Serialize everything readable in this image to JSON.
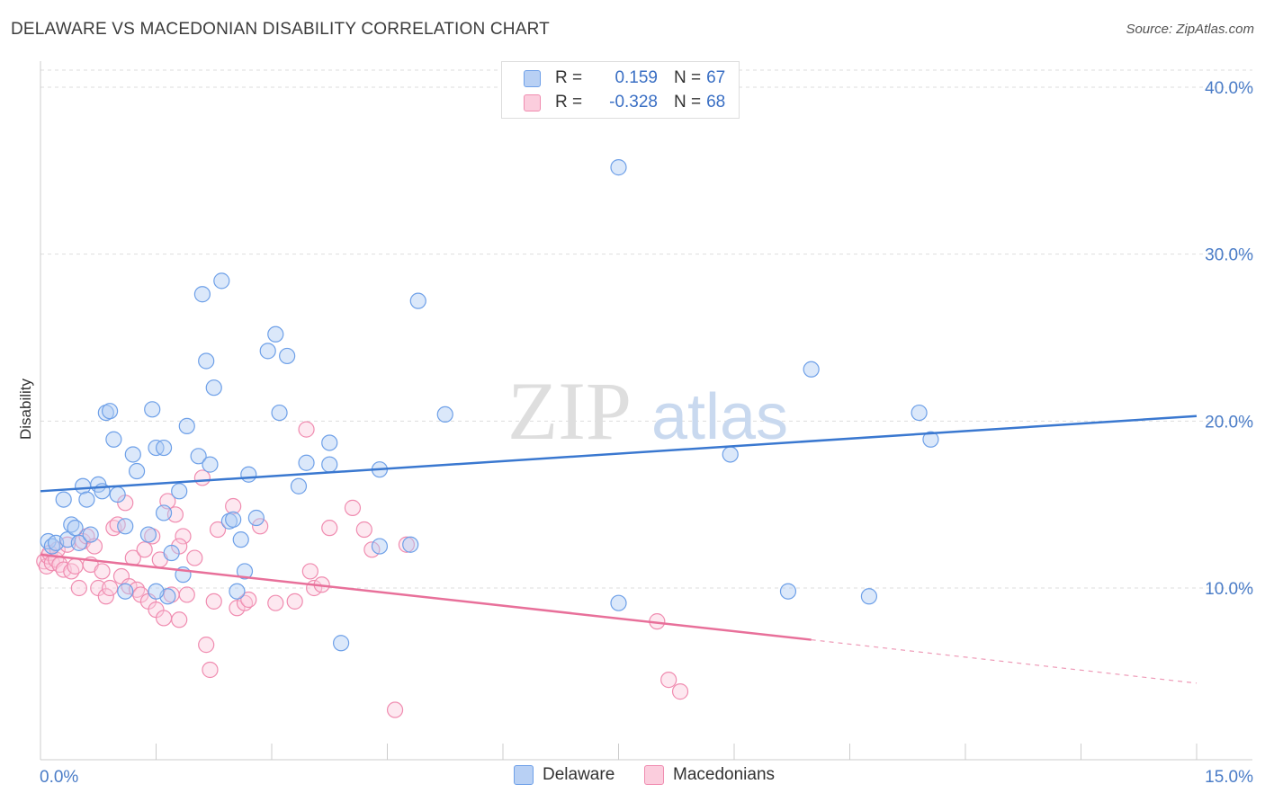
{
  "title": "DELAWARE VS MACEDONIAN DISABILITY CORRELATION CHART",
  "source": "Source: ZipAtlas.com",
  "watermark": {
    "zip": "ZIP",
    "atlas": "atlas"
  },
  "legend": {
    "rows": [
      {
        "r_label": "R =",
        "r_value": "0.159",
        "n_label": "N =",
        "n_value": "67",
        "color": "#6ea0e8",
        "fill": "#b8d0f4"
      },
      {
        "r_label": "R =",
        "r_value": "-0.328",
        "n_label": "N =",
        "n_value": "68",
        "color": "#f08cb0",
        "fill": "#fbcddd"
      }
    ]
  },
  "bottom_legend": {
    "delaware": "Delaware",
    "macedonians": "Macedonians"
  },
  "chart_data": {
    "type": "scatter",
    "xlabel": "",
    "ylabel": "Disability",
    "xlim": [
      0,
      15
    ],
    "ylim": [
      0,
      40
    ],
    "x_tick_labels": [
      "0.0%",
      "15.0%"
    ],
    "y_ticks": [
      10,
      20,
      30,
      40
    ],
    "y_tick_labels": [
      "10.0%",
      "20.0%",
      "30.0%",
      "40.0%"
    ],
    "grid": true,
    "colors": {
      "delaware": "#3a78d0",
      "macedonians": "#e8709a"
    },
    "series": [
      {
        "name": "Delaware",
        "color": "#6ea0e8",
        "trend": {
          "x0": 0,
          "y0": 15.8,
          "x1": 15,
          "y1": 20.3,
          "dashed_from": null
        },
        "points": [
          [
            0.1,
            12.8
          ],
          [
            0.15,
            12.5
          ],
          [
            0.2,
            12.7
          ],
          [
            0.3,
            15.3
          ],
          [
            0.35,
            12.9
          ],
          [
            0.4,
            13.8
          ],
          [
            0.45,
            13.6
          ],
          [
            0.5,
            12.7
          ],
          [
            0.55,
            16.1
          ],
          [
            0.6,
            15.3
          ],
          [
            0.65,
            13.2
          ],
          [
            0.75,
            16.2
          ],
          [
            0.8,
            15.8
          ],
          [
            0.85,
            20.5
          ],
          [
            0.9,
            20.6
          ],
          [
            0.95,
            18.9
          ],
          [
            1.0,
            15.6
          ],
          [
            1.1,
            13.7
          ],
          [
            1.2,
            18.0
          ],
          [
            1.25,
            17.0
          ],
          [
            1.4,
            13.2
          ],
          [
            1.45,
            20.7
          ],
          [
            1.5,
            18.4
          ],
          [
            1.6,
            18.4
          ],
          [
            1.6,
            14.5
          ],
          [
            1.65,
            9.5
          ],
          [
            1.7,
            12.1
          ],
          [
            1.8,
            15.8
          ],
          [
            1.85,
            10.8
          ],
          [
            1.9,
            19.7
          ],
          [
            2.05,
            17.9
          ],
          [
            2.1,
            27.6
          ],
          [
            2.15,
            23.6
          ],
          [
            2.2,
            17.4
          ],
          [
            2.25,
            22.0
          ],
          [
            2.35,
            28.4
          ],
          [
            2.45,
            14.0
          ],
          [
            2.5,
            14.1
          ],
          [
            2.55,
            9.8
          ],
          [
            2.6,
            12.9
          ],
          [
            2.65,
            11.0
          ],
          [
            2.7,
            16.8
          ],
          [
            2.8,
            14.2
          ],
          [
            2.95,
            24.2
          ],
          [
            3.05,
            25.2
          ],
          [
            3.1,
            20.5
          ],
          [
            3.2,
            23.9
          ],
          [
            3.35,
            16.1
          ],
          [
            3.45,
            17.5
          ],
          [
            3.75,
            18.7
          ],
          [
            3.75,
            17.4
          ],
          [
            3.9,
            6.7
          ],
          [
            4.4,
            17.1
          ],
          [
            4.4,
            12.5
          ],
          [
            4.8,
            12.6
          ],
          [
            4.9,
            27.2
          ],
          [
            5.25,
            20.4
          ],
          [
            1.5,
            9.8
          ],
          [
            7.5,
            35.2
          ],
          [
            7.5,
            9.1
          ],
          [
            8.95,
            18.0
          ],
          [
            9.7,
            9.8
          ],
          [
            10.0,
            23.1
          ],
          [
            10.75,
            9.5
          ],
          [
            11.4,
            20.5
          ],
          [
            11.55,
            18.9
          ],
          [
            1.1,
            9.8
          ]
        ]
      },
      {
        "name": "Macedonians",
        "color": "#f08cb0",
        "trend": {
          "x0": 0,
          "y0": 12.0,
          "x1": 10.0,
          "y1": 6.9,
          "x2": 15,
          "y2": 4.3
        },
        "points": [
          [
            0.05,
            11.6
          ],
          [
            0.08,
            11.3
          ],
          [
            0.1,
            11.9
          ],
          [
            0.12,
            12.1
          ],
          [
            0.15,
            11.5
          ],
          [
            0.2,
            11.7
          ],
          [
            0.22,
            12.3
          ],
          [
            0.25,
            11.4
          ],
          [
            0.3,
            11.1
          ],
          [
            0.35,
            12.6
          ],
          [
            0.4,
            11.0
          ],
          [
            0.45,
            11.3
          ],
          [
            0.5,
            10.0
          ],
          [
            0.55,
            12.8
          ],
          [
            0.6,
            13.1
          ],
          [
            0.65,
            11.4
          ],
          [
            0.7,
            12.5
          ],
          [
            0.75,
            10.0
          ],
          [
            0.8,
            11.0
          ],
          [
            0.85,
            9.5
          ],
          [
            0.9,
            10.0
          ],
          [
            0.95,
            13.6
          ],
          [
            1.0,
            13.8
          ],
          [
            1.05,
            10.7
          ],
          [
            1.1,
            15.1
          ],
          [
            1.15,
            10.1
          ],
          [
            1.2,
            11.8
          ],
          [
            1.25,
            9.9
          ],
          [
            1.3,
            9.6
          ],
          [
            1.35,
            12.3
          ],
          [
            1.4,
            9.2
          ],
          [
            1.45,
            13.1
          ],
          [
            1.5,
            8.7
          ],
          [
            1.55,
            11.7
          ],
          [
            1.6,
            8.2
          ],
          [
            1.65,
            15.2
          ],
          [
            1.7,
            9.6
          ],
          [
            1.75,
            14.4
          ],
          [
            1.8,
            8.1
          ],
          [
            1.85,
            13.1
          ],
          [
            1.9,
            9.6
          ],
          [
            2.0,
            11.8
          ],
          [
            2.1,
            16.6
          ],
          [
            2.15,
            6.6
          ],
          [
            2.2,
            5.1
          ],
          [
            2.25,
            9.2
          ],
          [
            2.3,
            13.5
          ],
          [
            2.5,
            14.9
          ],
          [
            2.55,
            8.8
          ],
          [
            2.65,
            9.1
          ],
          [
            2.7,
            9.3
          ],
          [
            2.85,
            13.7
          ],
          [
            3.05,
            9.1
          ],
          [
            3.3,
            9.2
          ],
          [
            3.45,
            19.5
          ],
          [
            3.5,
            11.0
          ],
          [
            3.55,
            10.0
          ],
          [
            3.65,
            10.2
          ],
          [
            3.75,
            13.6
          ],
          [
            4.05,
            14.8
          ],
          [
            4.2,
            13.5
          ],
          [
            4.3,
            12.3
          ],
          [
            4.6,
            2.7
          ],
          [
            4.75,
            12.6
          ],
          [
            8.0,
            8.0
          ],
          [
            8.15,
            4.5
          ],
          [
            8.3,
            3.8
          ],
          [
            1.8,
            12.5
          ]
        ]
      }
    ]
  }
}
